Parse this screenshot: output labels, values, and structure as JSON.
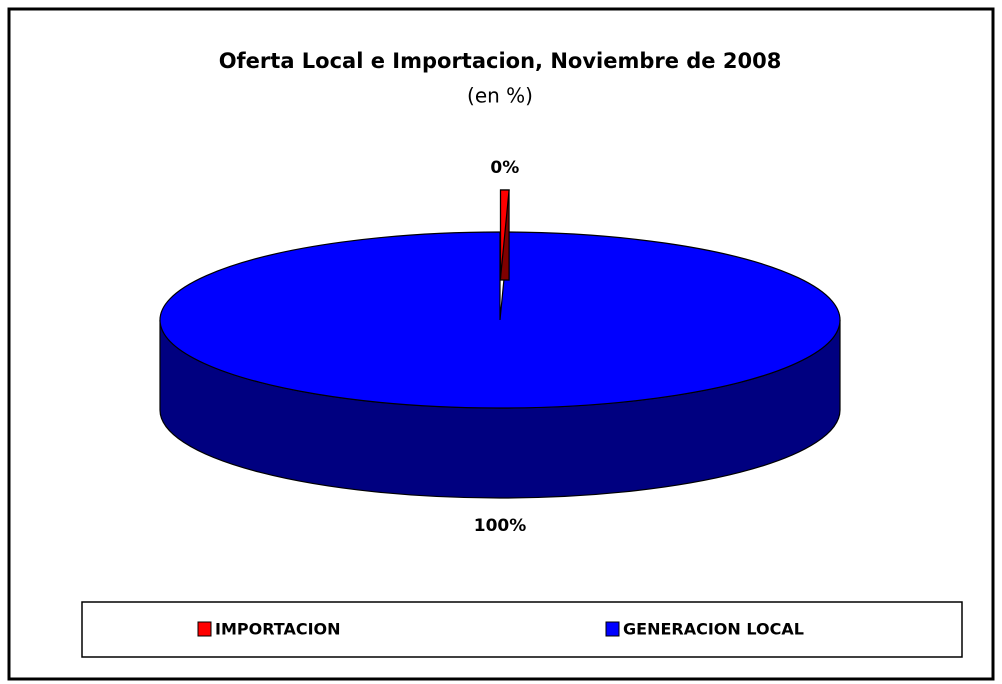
{
  "chart_data": {
    "type": "pie3d",
    "title": "Oferta Local e Importacion, Noviembre de 2008",
    "subtitle": "(en %)",
    "categories": [
      "IMPORTACION",
      "GENERACION LOCAL"
    ],
    "values": [
      0.4,
      99.6
    ],
    "value_labels": [
      "0%",
      "100%"
    ],
    "colors": [
      "#ff0000",
      "#0000ff"
    ],
    "legend": "bottom"
  }
}
